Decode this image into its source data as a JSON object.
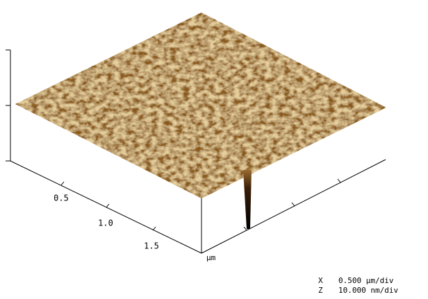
{
  "axis": {
    "tick_labels": [
      "0.5",
      "1.0",
      "1.5"
    ],
    "unit": "µm"
  },
  "scale": {
    "rows": [
      {
        "axis": "X",
        "value": "0.500 µm/div"
      },
      {
        "axis": "Z",
        "value": "10.000 nm/div"
      }
    ]
  }
}
